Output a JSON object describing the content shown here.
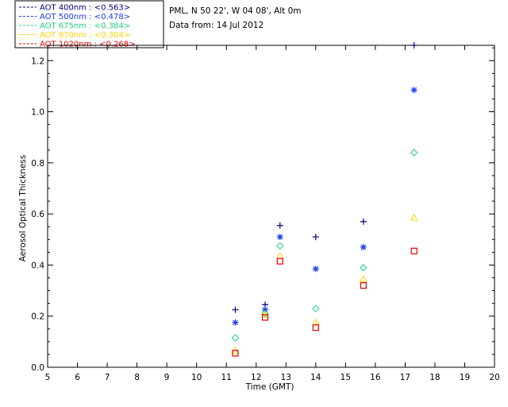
{
  "header": {
    "station": "PML, N 50 22', W 04 08', Alt 0m",
    "date_line": "Data from: 14 Jul 2012"
  },
  "chart_data": {
    "type": "scatter",
    "xlabel": "Time (GMT)",
    "ylabel": "Aerosol Optical Thickness",
    "xlim": [
      5,
      20
    ],
    "ylim": [
      0.0,
      1.26
    ],
    "x_ticks": [
      5,
      6,
      7,
      8,
      9,
      10,
      11,
      12,
      13,
      14,
      15,
      16,
      17,
      18,
      19,
      20
    ],
    "y_ticks": [
      0.0,
      0.2,
      0.4,
      0.6,
      0.8,
      1.0,
      1.2
    ],
    "y_tick_labels": [
      "0.0",
      "0.2",
      "0.4",
      "0.6",
      "0.8",
      "1.0",
      "1.2"
    ],
    "grid": false,
    "legend_position": "top-left-outside",
    "series": [
      {
        "name": "AOT 400nm",
        "legend_label": "AOT  400nm : <0.563>",
        "color": "#000080",
        "marker": "plus",
        "x": [
          11.3,
          12.3,
          12.8,
          14.0,
          15.6,
          17.3
        ],
        "y": [
          0.225,
          0.245,
          0.555,
          0.51,
          0.57,
          1.26
        ]
      },
      {
        "name": "AOT 500nm",
        "legend_label": "AOT  500nm : <0.478>",
        "color": "#1a3cf0",
        "marker": "asterisk",
        "x": [
          11.3,
          12.3,
          12.8,
          14.0,
          15.6,
          17.3
        ],
        "y": [
          0.175,
          0.225,
          0.51,
          0.385,
          0.47,
          1.085
        ]
      },
      {
        "name": "AOT 675nm",
        "legend_label": "AOT  675nm : <0.384>",
        "color": "#22d07a",
        "marker": "diamond",
        "x": [
          11.3,
          12.3,
          12.8,
          14.0,
          15.6,
          17.3
        ],
        "y": [
          0.115,
          0.21,
          0.475,
          0.23,
          0.39,
          0.84
        ]
      },
      {
        "name": "AOT 870nm",
        "legend_label": "AOT  870nm : <0.304>",
        "color": "#ffd000",
        "marker": "triangle",
        "x": [
          11.3,
          12.3,
          12.8,
          14.0,
          15.6,
          17.3
        ],
        "y": [
          0.065,
          0.205,
          0.435,
          0.175,
          0.345,
          0.585
        ]
      },
      {
        "name": "AOT 1020nm",
        "legend_label": "AOT 1020nm : <0.268>",
        "color": "#e00000",
        "marker": "square",
        "x": [
          11.3,
          12.3,
          12.8,
          14.0,
          15.6,
          17.3
        ],
        "y": [
          0.055,
          0.195,
          0.415,
          0.155,
          0.32,
          0.455
        ]
      }
    ]
  }
}
